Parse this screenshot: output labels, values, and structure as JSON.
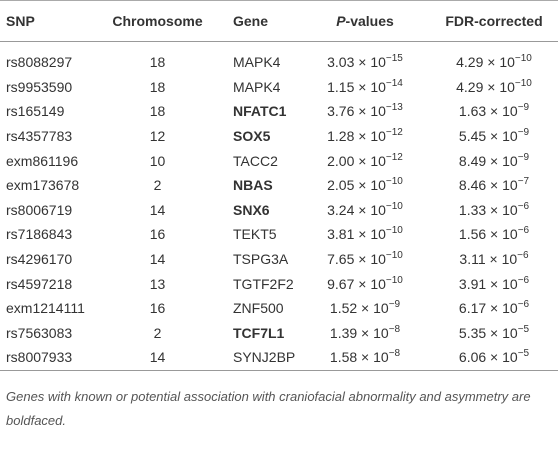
{
  "table": {
    "headers": [
      {
        "text": "SNP"
      },
      {
        "text": "Chromosome"
      },
      {
        "text": "Gene"
      },
      {
        "italic": "P",
        "text": "-values"
      },
      {
        "text": "FDR-corrected"
      }
    ],
    "rows": [
      {
        "snp": "rs8088297",
        "chromosome": 18,
        "gene": "MAPK4",
        "gene_bold": false,
        "p": {
          "base": "3.03 × 10",
          "exp": "−15"
        },
        "fdr": {
          "base": "4.29 × 10",
          "exp": "−10"
        }
      },
      {
        "snp": "rs9953590",
        "chromosome": 18,
        "gene": "MAPK4",
        "gene_bold": false,
        "p": {
          "base": "1.15 × 10",
          "exp": "−14"
        },
        "fdr": {
          "base": "4.29 × 10",
          "exp": "−10"
        }
      },
      {
        "snp": "rs165149",
        "chromosome": 18,
        "gene": "NFATC1",
        "gene_bold": true,
        "p": {
          "base": "3.76 × 10",
          "exp": "−13"
        },
        "fdr": {
          "base": "1.63 × 10",
          "exp": "−9"
        }
      },
      {
        "snp": "rs4357783",
        "chromosome": 12,
        "gene": "SOX5",
        "gene_bold": true,
        "p": {
          "base": "1.28 × 10",
          "exp": "−12"
        },
        "fdr": {
          "base": "5.45 × 10",
          "exp": "−9"
        }
      },
      {
        "snp": "exm861196",
        "chromosome": 10,
        "gene": "TACC2",
        "gene_bold": false,
        "p": {
          "base": "2.00 × 10",
          "exp": "−12"
        },
        "fdr": {
          "base": "8.49 × 10",
          "exp": "−9"
        }
      },
      {
        "snp": "exm173678",
        "chromosome": 2,
        "gene": "NBAS",
        "gene_bold": true,
        "p": {
          "base": "2.05 × 10",
          "exp": "−10"
        },
        "fdr": {
          "base": "8.46 × 10",
          "exp": "−7"
        }
      },
      {
        "snp": "rs8006719",
        "chromosome": 14,
        "gene": "SNX6",
        "gene_bold": true,
        "p": {
          "base": "3.24 × 10",
          "exp": "−10"
        },
        "fdr": {
          "base": "1.33 × 10",
          "exp": "−6"
        }
      },
      {
        "snp": "rs7186843",
        "chromosome": 16,
        "gene": "TEKT5",
        "gene_bold": false,
        "p": {
          "base": "3.81 × 10",
          "exp": "−10"
        },
        "fdr": {
          "base": "1.56 × 10",
          "exp": "−6"
        }
      },
      {
        "snp": "rs4296170",
        "chromosome": 14,
        "gene": "TSPG3A",
        "gene_bold": false,
        "p": {
          "base": "7.65 × 10",
          "exp": "−10"
        },
        "fdr": {
          "base": "3.11 × 10",
          "exp": "−6"
        }
      },
      {
        "snp": "rs4597218",
        "chromosome": 13,
        "gene": "TGTF2F2",
        "gene_bold": false,
        "p": {
          "base": "9.67 × 10",
          "exp": "−10"
        },
        "fdr": {
          "base": "3.91 × 10",
          "exp": "−6"
        }
      },
      {
        "snp": "exm1214111",
        "chromosome": 16,
        "gene": "ZNF500",
        "gene_bold": false,
        "p": {
          "base": "1.52 × 10",
          "exp": "−9"
        },
        "fdr": {
          "base": "6.17 × 10",
          "exp": "−6"
        }
      },
      {
        "snp": "rs7563083",
        "chromosome": 2,
        "gene": "TCF7L1",
        "gene_bold": true,
        "p": {
          "base": "1.39 × 10",
          "exp": "−8"
        },
        "fdr": {
          "base": "5.35 × 10",
          "exp": "−5"
        }
      },
      {
        "snp": "rs8007933",
        "chromosome": 14,
        "gene": "SYNJ2BP",
        "gene_bold": false,
        "p": {
          "base": "1.58 × 10",
          "exp": "−8"
        },
        "fdr": {
          "base": "6.06 × 10",
          "exp": "−5"
        }
      }
    ],
    "footnote": "Genes with known or potential association with craniofacial abnormality and asymmetry are boldfaced."
  }
}
